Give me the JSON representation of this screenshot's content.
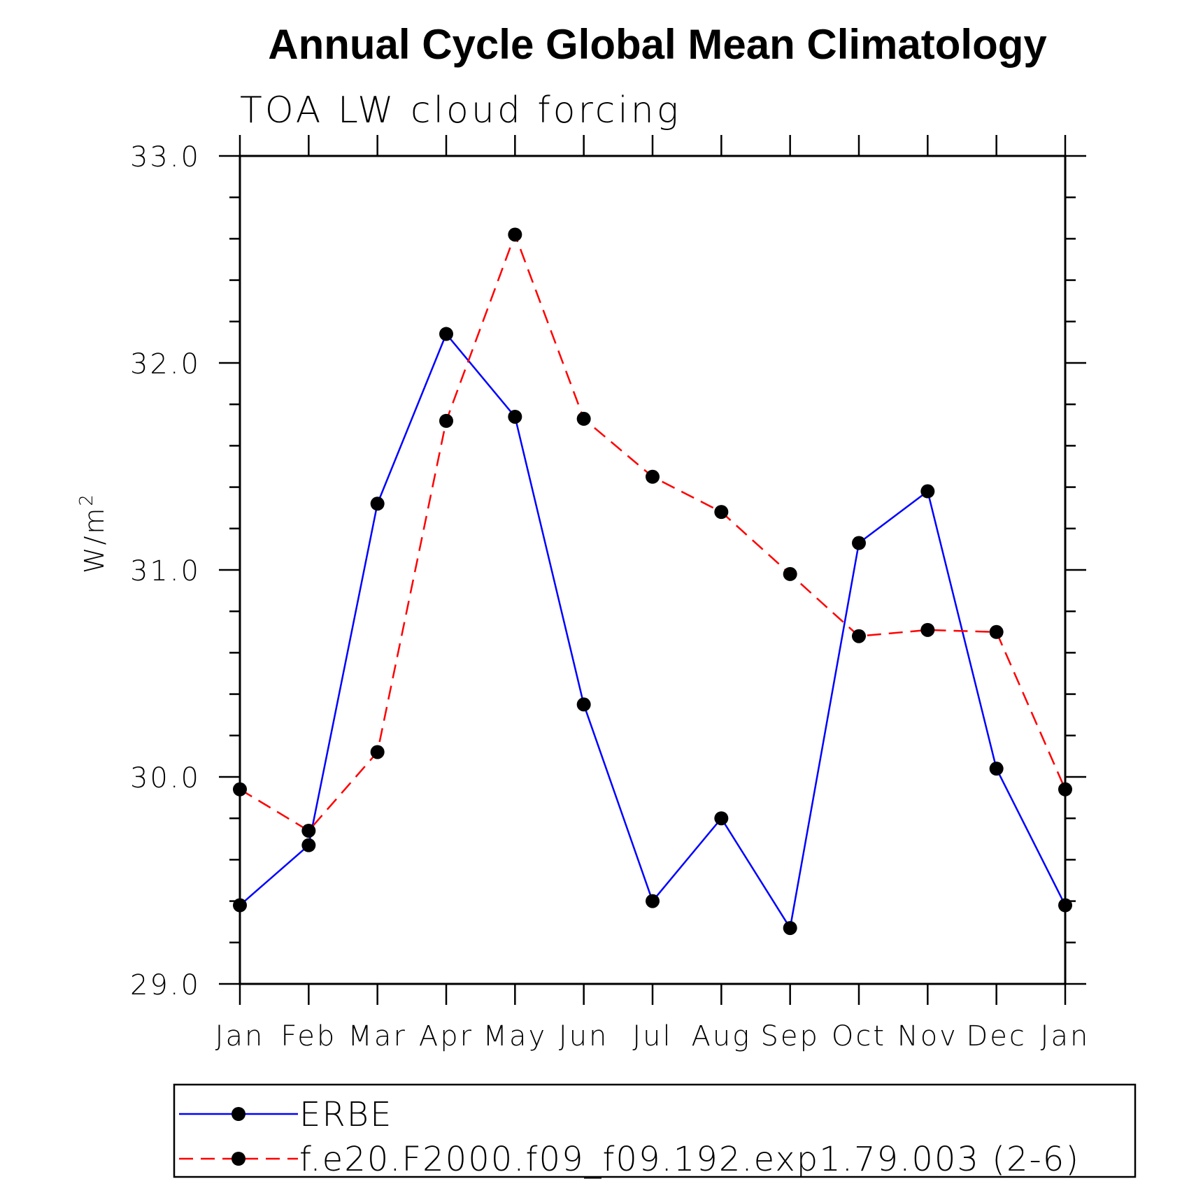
{
  "chart_data": {
    "type": "line",
    "title": "Annual Cycle Global Mean Climatology",
    "subtitle": "TOA LW cloud forcing",
    "ylabel": "W/m",
    "ylabel_sup": "2",
    "xlabel": "",
    "ylim": [
      29.0,
      33.0
    ],
    "yticks": [
      "29.0",
      "30.0",
      "31.0",
      "32.0",
      "33.0"
    ],
    "yticks_values": [
      29.0,
      30.0,
      31.0,
      32.0,
      33.0
    ],
    "categories": [
      "Jan",
      "Feb",
      "Mar",
      "Apr",
      "May",
      "Jun",
      "Jul",
      "Aug",
      "Sep",
      "Oct",
      "Nov",
      "Dec",
      "Jan"
    ],
    "grid": false,
    "legend_position": "bottom",
    "series": [
      {
        "name": "ERBE",
        "color": "#0000ff",
        "dash": "solid",
        "values": [
          29.38,
          29.67,
          31.32,
          32.14,
          31.74,
          30.35,
          29.4,
          29.8,
          29.27,
          31.13,
          31.38,
          30.04,
          29.38
        ]
      },
      {
        "name": "f.e20.F2000.f09_f09.192.exp1.79.003 (2-6)",
        "color": "#ff0000",
        "dash": "dashed",
        "values": [
          29.94,
          29.74,
          30.12,
          31.72,
          32.62,
          31.73,
          31.45,
          31.28,
          30.98,
          30.68,
          30.71,
          30.7,
          29.94
        ]
      }
    ]
  }
}
